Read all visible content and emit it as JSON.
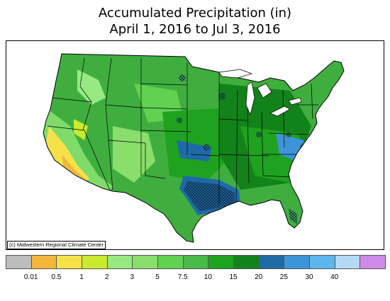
{
  "title_line1": "Accumulated Precipitation (in)",
  "title_line2": "April 1, 2016 to Jul 3, 2016",
  "credit": "(c) Midwestern Regional Climate Center",
  "legend": {
    "colors": [
      "#bdbdbd",
      "#f2b73a",
      "#f7e14a",
      "#c9ea2e",
      "#97ea82",
      "#8ade6c",
      "#61d150",
      "#4bb84a",
      "#1fa21f",
      "#12821a",
      "#1f6aa6",
      "#3d94d8",
      "#5fb6ee",
      "#b3d9f4",
      "#cf8be8"
    ],
    "tick_labels": [
      "0.01",
      "0.5",
      "1",
      "2",
      "3",
      "5",
      "7.5",
      "10",
      "15",
      "20",
      "25",
      "30",
      "40"
    ]
  }
}
